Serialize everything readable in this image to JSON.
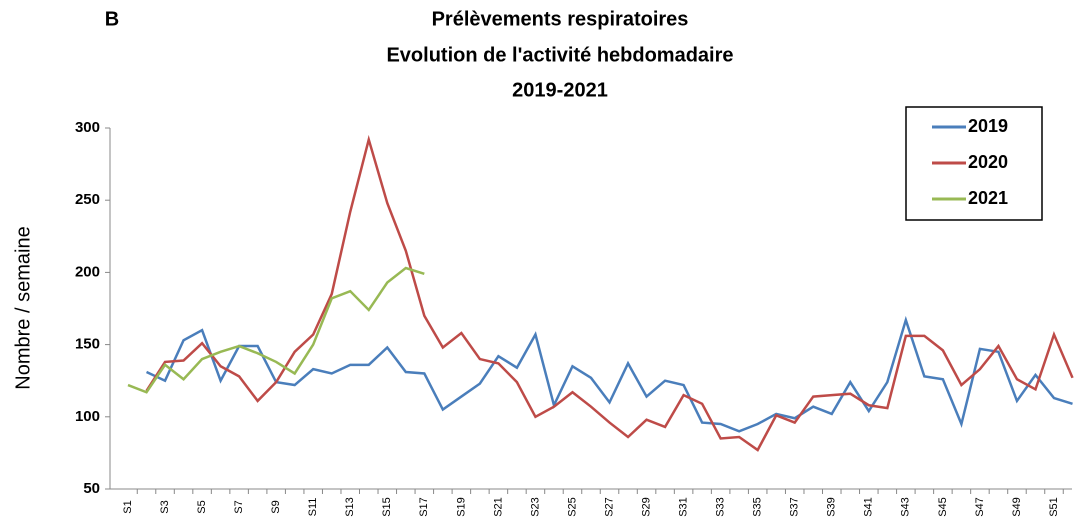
{
  "chart_data": {
    "type": "line",
    "panel": "B",
    "title": [
      "Prélèvements respiratoires",
      "Evolution de l'activité hebdomadaire",
      "2019-2021"
    ],
    "y_label": "Nombre / semaine",
    "categories": [
      "S1",
      null,
      "S3",
      null,
      "S5",
      null,
      "S7",
      null,
      "S9",
      null,
      "S11",
      null,
      "S13",
      null,
      "S15",
      null,
      "S17",
      null,
      "S19",
      null,
      "S21",
      null,
      "S23",
      null,
      "S25",
      null,
      "S27",
      null,
      "S29",
      null,
      "S31",
      null,
      "S33",
      null,
      "S35",
      null,
      "S37",
      null,
      "S39",
      null,
      "S41",
      null,
      "S43",
      null,
      "S45",
      null,
      "S47",
      null,
      "S49",
      null,
      "S51",
      null
    ],
    "series": [
      {
        "name": "2019",
        "color": "#4a7ebb",
        "values": [
          null,
          131,
          125,
          153,
          160,
          125,
          149,
          149,
          124,
          122,
          133,
          130,
          136,
          136,
          148,
          131,
          130,
          105,
          114,
          123,
          142,
          134,
          157,
          108,
          135,
          127,
          110,
          137,
          114,
          125,
          122,
          96,
          95,
          90,
          95,
          102,
          99,
          107,
          102,
          124,
          104,
          124,
          167,
          128,
          126,
          95,
          147,
          145,
          111,
          129,
          113,
          109
        ]
      },
      {
        "name": "2020",
        "color": "#be4b48",
        "values": [
          null,
          118,
          138,
          139,
          151,
          135,
          128,
          111,
          124,
          145,
          157,
          185,
          242,
          292,
          248,
          215,
          170,
          148,
          158,
          140,
          137,
          124,
          100,
          107,
          117,
          107,
          96,
          86,
          98,
          93,
          115,
          109,
          85,
          86,
          77,
          101,
          96,
          114,
          115,
          116,
          108,
          106,
          156,
          156,
          146,
          122,
          133,
          149,
          126,
          119,
          157,
          127
        ]
      },
      {
        "name": "2021",
        "color": "#98b954",
        "values": [
          122,
          117,
          136,
          126,
          140,
          145,
          149,
          144,
          138,
          130,
          150,
          182,
          187,
          174,
          193,
          203,
          199,
          null,
          null,
          null,
          null,
          null,
          null,
          null,
          null,
          null,
          null,
          null,
          null,
          null,
          null,
          null,
          null,
          null,
          null,
          null,
          null,
          null,
          null,
          null,
          null,
          null,
          null,
          null,
          null,
          null,
          null,
          null,
          null,
          null,
          null,
          null
        ]
      }
    ],
    "ylim": [
      50,
      300
    ],
    "yticks": [
      50,
      100,
      150,
      200,
      250,
      300
    ],
    "legend": "top-right"
  }
}
